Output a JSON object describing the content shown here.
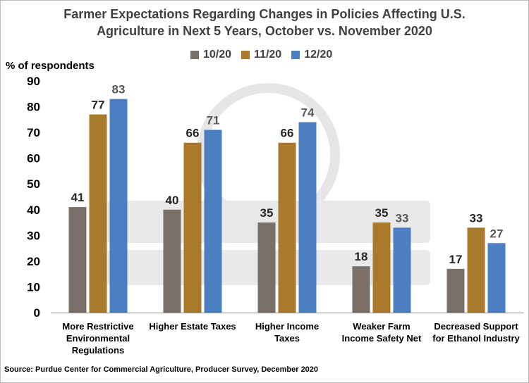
{
  "chart_data": {
    "type": "bar",
    "title_line1": "Farmer Expectations Regarding Changes in Policies Affecting U.S.",
    "title_line2": "Agriculture in Next 5 Years, October vs. November 2020",
    "ylabel": "% of respondents",
    "ylim": [
      0,
      90
    ],
    "yticks": [
      0,
      10,
      20,
      30,
      40,
      50,
      60,
      70,
      80,
      90
    ],
    "grid": false,
    "legend_position": "top-center",
    "categories": [
      [
        "More Restrictive",
        "Environmental",
        "Regulations"
      ],
      [
        "Higher Estate Taxes"
      ],
      [
        "Higher Income",
        "Taxes"
      ],
      [
        "Weaker Farm",
        "Income Safety Net"
      ],
      [
        "Decreased Support",
        "for Ethanol Industry"
      ]
    ],
    "series": [
      {
        "name": "10/20",
        "color": "#786f69",
        "label_color": "#262626",
        "values": [
          41,
          40,
          35,
          18,
          17
        ]
      },
      {
        "name": "11/20",
        "color": "#a97a2c",
        "label_color": "#262626",
        "values": [
          77,
          66,
          66,
          35,
          33
        ]
      },
      {
        "name": "12/20",
        "color": "#4b7fc1",
        "label_color": "#595959",
        "values": [
          83,
          71,
          74,
          33,
          27
        ]
      }
    ],
    "source": "Source: Purdue Center for Commercial Agriculture, Producer Survey, December 2020"
  }
}
